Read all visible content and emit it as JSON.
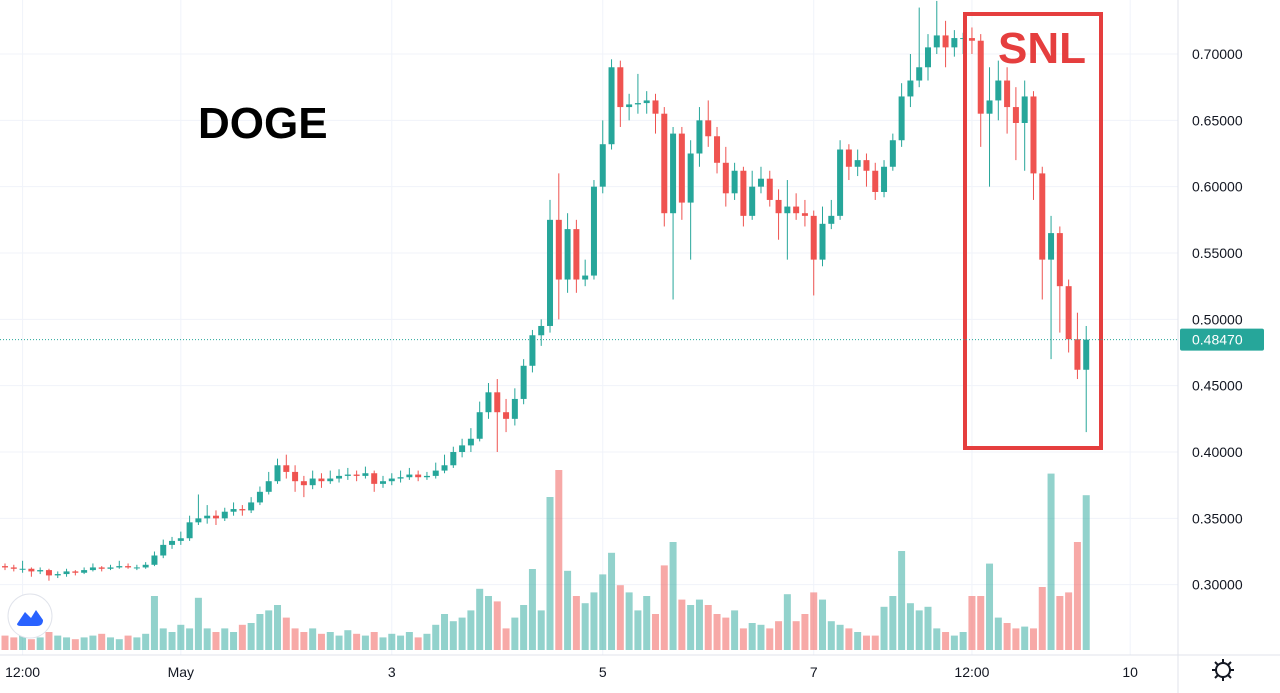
{
  "chart_data": {
    "type": "candlestick",
    "title": "DOGE",
    "annotation": "SNL",
    "up_color": "#26a69a",
    "down_color": "#ef5350",
    "grid": true,
    "xlim": [
      -0.57,
      133.1
    ],
    "xticks": [
      {
        "value": 2,
        "label": "12:00"
      },
      {
        "value": 20,
        "label": "May"
      },
      {
        "value": 44,
        "label": "3"
      },
      {
        "value": 68,
        "label": "5"
      },
      {
        "value": 92,
        "label": "7"
      },
      {
        "value": 110,
        "label": "12:00"
      },
      {
        "value": 128,
        "label": "10"
      }
    ],
    "ylim": [
      0.247,
      0.7407
    ],
    "yticks": [
      {
        "value": 0.3,
        "label": "0.30000"
      },
      {
        "value": 0.35,
        "label": "0.35000"
      },
      {
        "value": 0.4,
        "label": "0.40000"
      },
      {
        "value": 0.45,
        "label": "0.45000"
      },
      {
        "value": 0.5,
        "label": "0.50000"
      },
      {
        "value": 0.55,
        "label": "0.55000"
      },
      {
        "value": 0.6,
        "label": "0.60000"
      },
      {
        "value": 0.65,
        "label": "0.65000"
      },
      {
        "value": 0.7,
        "label": "0.70000"
      }
    ],
    "last_price": {
      "value": 0.4847,
      "label": "0.48470"
    },
    "ohlc": [
      [
        0.314,
        0.316,
        0.311,
        0.313
      ],
      [
        0.313,
        0.315,
        0.31,
        0.312
      ],
      [
        0.312,
        0.318,
        0.309,
        0.312
      ],
      [
        0.312,
        0.313,
        0.306,
        0.31
      ],
      [
        0.31,
        0.313,
        0.308,
        0.311
      ],
      [
        0.311,
        0.312,
        0.303,
        0.307
      ],
      [
        0.307,
        0.31,
        0.305,
        0.308
      ],
      [
        0.308,
        0.312,
        0.306,
        0.31
      ],
      [
        0.31,
        0.311,
        0.307,
        0.309
      ],
      [
        0.309,
        0.313,
        0.308,
        0.311
      ],
      [
        0.311,
        0.316,
        0.31,
        0.313
      ],
      [
        0.313,
        0.314,
        0.31,
        0.312
      ],
      [
        0.312,
        0.315,
        0.311,
        0.313
      ],
      [
        0.313,
        0.318,
        0.312,
        0.314
      ],
      [
        0.314,
        0.316,
        0.312,
        0.313
      ],
      [
        0.313,
        0.315,
        0.311,
        0.313
      ],
      [
        0.313,
        0.317,
        0.312,
        0.315
      ],
      [
        0.315,
        0.325,
        0.314,
        0.322
      ],
      [
        0.322,
        0.334,
        0.32,
        0.33
      ],
      [
        0.33,
        0.336,
        0.327,
        0.333
      ],
      [
        0.333,
        0.34,
        0.33,
        0.335
      ],
      [
        0.335,
        0.352,
        0.333,
        0.347
      ],
      [
        0.347,
        0.368,
        0.345,
        0.35
      ],
      [
        0.35,
        0.36,
        0.346,
        0.352
      ],
      [
        0.352,
        0.356,
        0.345,
        0.35
      ],
      [
        0.35,
        0.358,
        0.348,
        0.355
      ],
      [
        0.355,
        0.362,
        0.352,
        0.357
      ],
      [
        0.357,
        0.36,
        0.352,
        0.356
      ],
      [
        0.356,
        0.366,
        0.354,
        0.362
      ],
      [
        0.362,
        0.374,
        0.36,
        0.37
      ],
      [
        0.37,
        0.385,
        0.368,
        0.378
      ],
      [
        0.378,
        0.395,
        0.376,
        0.39
      ],
      [
        0.39,
        0.398,
        0.38,
        0.385
      ],
      [
        0.385,
        0.39,
        0.37,
        0.378
      ],
      [
        0.378,
        0.382,
        0.366,
        0.375
      ],
      [
        0.375,
        0.386,
        0.372,
        0.38
      ],
      [
        0.38,
        0.384,
        0.373,
        0.378
      ],
      [
        0.378,
        0.386,
        0.376,
        0.38
      ],
      [
        0.38,
        0.387,
        0.377,
        0.382
      ],
      [
        0.382,
        0.388,
        0.379,
        0.383
      ],
      [
        0.383,
        0.386,
        0.378,
        0.382
      ],
      [
        0.382,
        0.389,
        0.38,
        0.384
      ],
      [
        0.384,
        0.386,
        0.37,
        0.376
      ],
      [
        0.376,
        0.382,
        0.373,
        0.378
      ],
      [
        0.378,
        0.384,
        0.375,
        0.38
      ],
      [
        0.38,
        0.386,
        0.377,
        0.381
      ],
      [
        0.381,
        0.388,
        0.379,
        0.383
      ],
      [
        0.383,
        0.386,
        0.378,
        0.381
      ],
      [
        0.381,
        0.385,
        0.379,
        0.382
      ],
      [
        0.382,
        0.392,
        0.38,
        0.386
      ],
      [
        0.386,
        0.398,
        0.384,
        0.39
      ],
      [
        0.39,
        0.404,
        0.388,
        0.4
      ],
      [
        0.4,
        0.41,
        0.396,
        0.405
      ],
      [
        0.405,
        0.418,
        0.4,
        0.41
      ],
      [
        0.41,
        0.438,
        0.408,
        0.43
      ],
      [
        0.43,
        0.452,
        0.425,
        0.445
      ],
      [
        0.445,
        0.455,
        0.4,
        0.43
      ],
      [
        0.43,
        0.44,
        0.415,
        0.425
      ],
      [
        0.425,
        0.448,
        0.42,
        0.44
      ],
      [
        0.44,
        0.47,
        0.436,
        0.465
      ],
      [
        0.465,
        0.492,
        0.46,
        0.488
      ],
      [
        0.488,
        0.5,
        0.48,
        0.495
      ],
      [
        0.495,
        0.59,
        0.49,
        0.575
      ],
      [
        0.575,
        0.61,
        0.5,
        0.53
      ],
      [
        0.53,
        0.58,
        0.52,
        0.568
      ],
      [
        0.568,
        0.575,
        0.52,
        0.53
      ],
      [
        0.53,
        0.545,
        0.525,
        0.533
      ],
      [
        0.533,
        0.605,
        0.53,
        0.6
      ],
      [
        0.6,
        0.65,
        0.595,
        0.632
      ],
      [
        0.632,
        0.696,
        0.628,
        0.69
      ],
      [
        0.69,
        0.695,
        0.645,
        0.66
      ],
      [
        0.66,
        0.67,
        0.65,
        0.662
      ],
      [
        0.662,
        0.685,
        0.655,
        0.663
      ],
      [
        0.663,
        0.672,
        0.655,
        0.665
      ],
      [
        0.665,
        0.67,
        0.64,
        0.655
      ],
      [
        0.655,
        0.66,
        0.57,
        0.58
      ],
      [
        0.58,
        0.645,
        0.515,
        0.64
      ],
      [
        0.64,
        0.645,
        0.575,
        0.588
      ],
      [
        0.588,
        0.635,
        0.545,
        0.625
      ],
      [
        0.625,
        0.66,
        0.615,
        0.65
      ],
      [
        0.65,
        0.665,
        0.63,
        0.638
      ],
      [
        0.638,
        0.645,
        0.61,
        0.618
      ],
      [
        0.618,
        0.63,
        0.585,
        0.595
      ],
      [
        0.595,
        0.618,
        0.59,
        0.612
      ],
      [
        0.612,
        0.615,
        0.57,
        0.578
      ],
      [
        0.578,
        0.612,
        0.575,
        0.6
      ],
      [
        0.6,
        0.615,
        0.595,
        0.606
      ],
      [
        0.606,
        0.612,
        0.585,
        0.59
      ],
      [
        0.59,
        0.598,
        0.56,
        0.58
      ],
      [
        0.58,
        0.605,
        0.545,
        0.585
      ],
      [
        0.585,
        0.595,
        0.575,
        0.58
      ],
      [
        0.58,
        0.59,
        0.57,
        0.578
      ],
      [
        0.578,
        0.582,
        0.518,
        0.545
      ],
      [
        0.545,
        0.585,
        0.54,
        0.572
      ],
      [
        0.572,
        0.59,
        0.568,
        0.578
      ],
      [
        0.578,
        0.635,
        0.575,
        0.628
      ],
      [
        0.628,
        0.632,
        0.605,
        0.615
      ],
      [
        0.615,
        0.628,
        0.608,
        0.62
      ],
      [
        0.62,
        0.625,
        0.6,
        0.612
      ],
      [
        0.612,
        0.618,
        0.59,
        0.596
      ],
      [
        0.596,
        0.62,
        0.592,
        0.615
      ],
      [
        0.615,
        0.64,
        0.612,
        0.635
      ],
      [
        0.635,
        0.678,
        0.63,
        0.668
      ],
      [
        0.668,
        0.7,
        0.66,
        0.68
      ],
      [
        0.68,
        0.735,
        0.675,
        0.69
      ],
      [
        0.69,
        0.715,
        0.68,
        0.705
      ],
      [
        0.705,
        0.74,
        0.7,
        0.714
      ],
      [
        0.714,
        0.725,
        0.69,
        0.705
      ],
      [
        0.705,
        0.718,
        0.698,
        0.712
      ],
      [
        0.712,
        0.716,
        0.7,
        0.712
      ],
      [
        0.712,
        0.72,
        0.7,
        0.71
      ],
      [
        0.71,
        0.715,
        0.63,
        0.655
      ],
      [
        0.655,
        0.69,
        0.6,
        0.665
      ],
      [
        0.665,
        0.695,
        0.65,
        0.68
      ],
      [
        0.68,
        0.69,
        0.64,
        0.66
      ],
      [
        0.66,
        0.675,
        0.62,
        0.648
      ],
      [
        0.648,
        0.68,
        0.612,
        0.668
      ],
      [
        0.668,
        0.672,
        0.59,
        0.61
      ],
      [
        0.61,
        0.615,
        0.515,
        0.545
      ],
      [
        0.545,
        0.578,
        0.47,
        0.565
      ],
      [
        0.565,
        0.57,
        0.49,
        0.525
      ],
      [
        0.525,
        0.53,
        0.475,
        0.485
      ],
      [
        0.485,
        0.505,
        0.455,
        0.462
      ],
      [
        0.462,
        0.495,
        0.415,
        0.4847
      ]
    ],
    "volume": [
      8,
      7,
      9,
      6,
      7,
      10,
      8,
      7,
      6,
      7,
      8,
      9,
      7,
      6,
      8,
      7,
      9,
      30,
      12,
      10,
      14,
      12,
      29,
      12,
      10,
      12,
      10,
      14,
      15,
      20,
      22,
      25,
      18,
      12,
      10,
      12,
      9,
      10,
      8,
      11,
      9,
      8,
      10,
      7,
      9,
      8,
      10,
      7,
      9,
      14,
      20,
      16,
      18,
      22,
      34,
      30,
      27,
      12,
      18,
      25,
      45,
      22,
      85,
      100,
      44,
      30,
      26,
      32,
      42,
      54,
      36,
      32,
      22,
      30,
      20,
      47,
      60,
      28,
      25,
      28,
      25,
      20,
      18,
      22,
      12,
      15,
      14,
      12,
      16,
      31,
      16,
      20,
      32,
      28,
      16,
      14,
      12,
      10,
      8,
      8,
      24,
      30,
      55,
      26,
      22,
      24,
      12,
      10,
      8,
      10,
      30,
      30,
      48,
      18,
      15,
      12,
      13,
      12,
      35,
      98,
      30,
      32,
      60,
      86
    ]
  }
}
